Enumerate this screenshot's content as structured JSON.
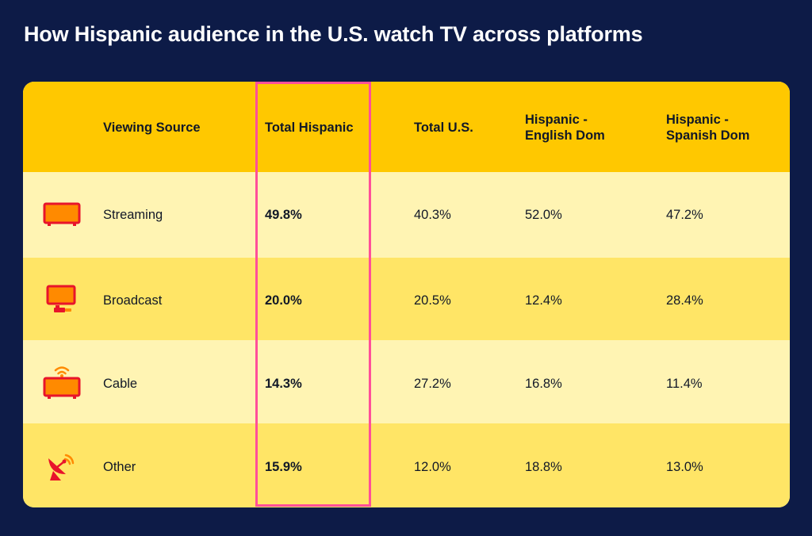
{
  "title": "How Hispanic audience in the U.S. watch TV across platforms",
  "colors": {
    "background": "#0d1b47",
    "header": "#ffc800",
    "row_light": "#fff4b3",
    "row_dark": "#ffe566",
    "highlight": "#ff4f9a",
    "icon_fill": "#ff8a00",
    "icon_stroke": "#e8142b"
  },
  "columns": [
    "Viewing Source",
    "Total Hispanic",
    "Total U.S.",
    "Hispanic -\nEnglish Dom",
    "Hispanic -\nSpanish Dom"
  ],
  "header": {
    "source": "Viewing Source",
    "total_hispanic": "Total Hispanic",
    "total_us": "Total U.S.",
    "english_dom_1": "Hispanic -",
    "english_dom_2": "English Dom",
    "spanish_dom_1": "Hispanic -",
    "spanish_dom_2": "Spanish Dom"
  },
  "rows": [
    {
      "source": "Streaming",
      "icon": "streaming-tv-icon",
      "total_hispanic": "49.8%",
      "total_us": "40.3%",
      "english_dom": "52.0%",
      "spanish_dom": "47.2%"
    },
    {
      "source": "Broadcast",
      "icon": "broadcast-tv-icon",
      "total_hispanic": "20.0%",
      "total_us": "20.5%",
      "english_dom": "12.4%",
      "spanish_dom": "28.4%"
    },
    {
      "source": "Cable",
      "icon": "cable-tv-icon",
      "total_hispanic": "14.3%",
      "total_us": "27.2%",
      "english_dom": "16.8%",
      "spanish_dom": "11.4%"
    },
    {
      "source": "Other",
      "icon": "satellite-dish-icon",
      "total_hispanic": "15.9%",
      "total_us": "12.0%",
      "english_dom": "18.8%",
      "spanish_dom": "13.0%"
    }
  ],
  "chart_data": {
    "type": "table",
    "title": "How Hispanic audience in the U.S. watch TV across platforms",
    "columns": [
      "Viewing Source",
      "Total Hispanic",
      "Total U.S.",
      "Hispanic - English Dom",
      "Hispanic - Spanish Dom"
    ],
    "categories": [
      "Streaming",
      "Broadcast",
      "Cable",
      "Other"
    ],
    "series": [
      {
        "name": "Total Hispanic",
        "values": [
          49.8,
          20.0,
          14.3,
          15.9
        ]
      },
      {
        "name": "Total U.S.",
        "values": [
          40.3,
          20.5,
          27.2,
          12.0
        ]
      },
      {
        "name": "Hispanic - English Dom",
        "values": [
          52.0,
          12.4,
          16.8,
          18.8
        ]
      },
      {
        "name": "Hispanic - Spanish Dom",
        "values": [
          47.2,
          28.4,
          11.4,
          13.0
        ]
      }
    ],
    "highlighted_column": "Total Hispanic"
  }
}
